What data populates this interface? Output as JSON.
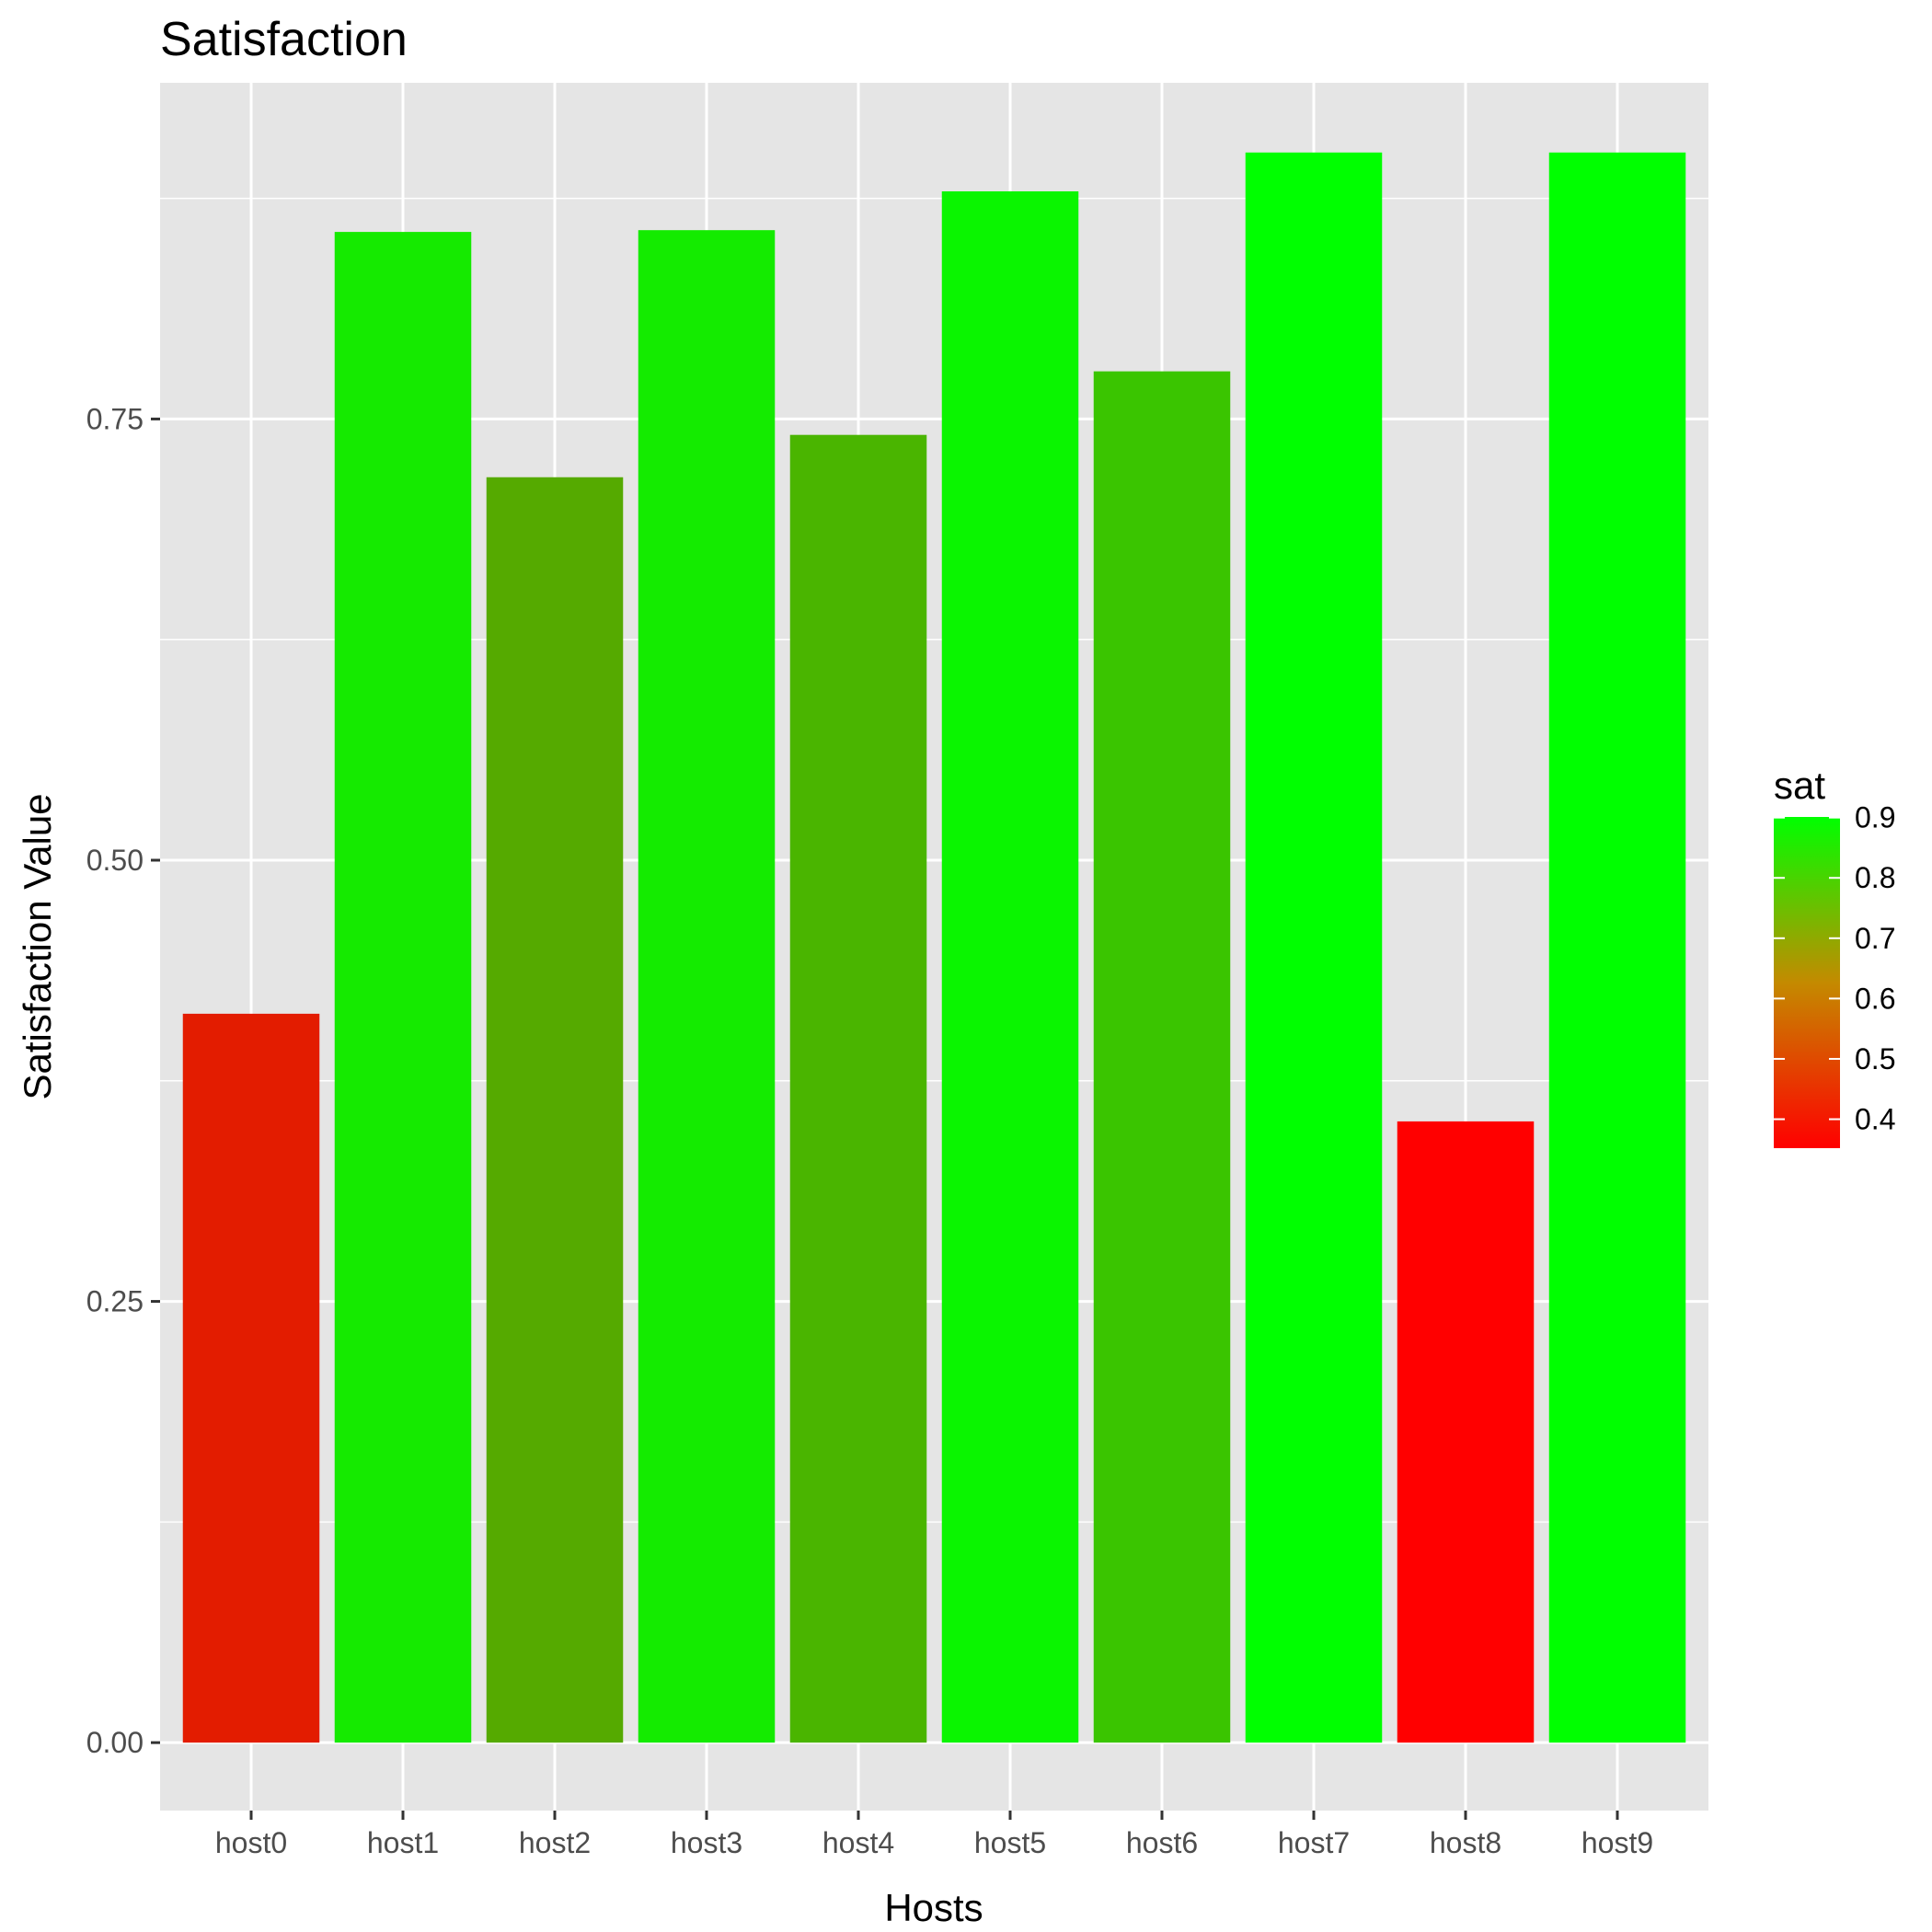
{
  "chart_data": {
    "type": "bar",
    "title": "Satisfaction",
    "xlabel": "Hosts",
    "ylabel": "Satisfaction Value",
    "categories": [
      "host0",
      "host1",
      "host2",
      "host3",
      "host4",
      "host5",
      "host6",
      "host7",
      "host8",
      "host9"
    ],
    "values": [
      0.413,
      0.856,
      0.717,
      0.857,
      0.741,
      0.879,
      0.777,
      0.901,
      0.352,
      0.901
    ],
    "ylim": [
      -0.0385,
      0.9405
    ],
    "yticks": [
      0,
      0.25,
      0.5,
      0.75
    ],
    "ytick_labels": [
      "0.00",
      "0.25",
      "0.50",
      "0.75"
    ],
    "grid": true,
    "legend": {
      "title": "sat",
      "placement": "right",
      "range": [
        0.352,
        0.901
      ],
      "ticks": [
        0.4,
        0.5,
        0.6,
        0.7,
        0.8,
        0.9
      ],
      "labels": [
        "0.4",
        "0.5",
        "0.6",
        "0.7",
        "0.8",
        "0.9"
      ],
      "low_color": "#ff0000",
      "high_color": "#00ff00"
    },
    "colors": {
      "panel_background": "#e5e5e5",
      "grid": "#ffffff",
      "tick_text": "#4d4d4d",
      "tick_mark": "#333333"
    }
  }
}
